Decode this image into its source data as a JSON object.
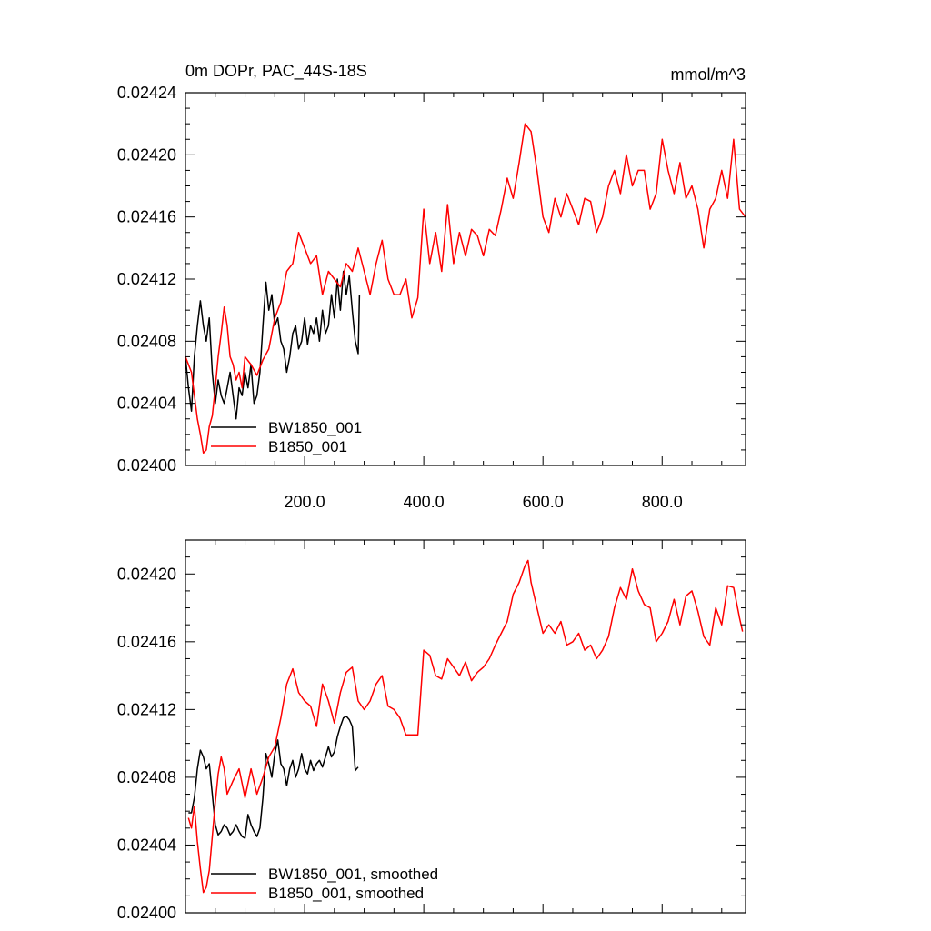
{
  "chart_data": [
    {
      "type": "line",
      "title": "0m DOPr, PAC_44S-18S",
      "units": "mmol/m^3",
      "xlabel": "",
      "ylabel": "",
      "xlim": [
        0,
        940
      ],
      "ylim": [
        0.024,
        0.02424
      ],
      "x_ticks": [
        200,
        400,
        600,
        800
      ],
      "x_tick_labels": [
        "200.0",
        "400.0",
        "600.0",
        "800.0"
      ],
      "y_ticks": [
        0.024,
        0.02404,
        0.02408,
        0.02412,
        0.02416,
        0.0242,
        0.02424
      ],
      "y_tick_labels": [
        "0.02400",
        "0.02404",
        "0.02408",
        "0.02412",
        "0.02416",
        "0.02420",
        "0.02424"
      ],
      "legend_position": "bottom-left",
      "series": [
        {
          "name": "BW1850_001",
          "color": "#000000",
          "x": [
            0,
            5,
            10,
            15,
            20,
            25,
            30,
            35,
            40,
            45,
            50,
            55,
            60,
            65,
            70,
            75,
            80,
            85,
            90,
            95,
            100,
            105,
            110,
            115,
            120,
            125,
            130,
            135,
            140,
            145,
            150,
            155,
            160,
            165,
            170,
            175,
            180,
            185,
            190,
            195,
            200,
            205,
            210,
            215,
            220,
            225,
            230,
            235,
            240,
            245,
            250,
            255,
            260,
            265,
            270,
            275,
            280,
            285,
            290,
            292
          ],
          "values": [
            0.02407,
            0.02405,
            0.024035,
            0.02407,
            0.02409,
            0.024106,
            0.02409,
            0.02408,
            0.024095,
            0.02406,
            0.02404,
            0.024055,
            0.024045,
            0.02404,
            0.02405,
            0.02406,
            0.024045,
            0.02403,
            0.02405,
            0.024045,
            0.02406,
            0.02405,
            0.024065,
            0.02404,
            0.024045,
            0.02406,
            0.02409,
            0.024118,
            0.0241,
            0.02411,
            0.02409,
            0.024095,
            0.02408,
            0.024075,
            0.02406,
            0.02407,
            0.024085,
            0.02409,
            0.024075,
            0.02408,
            0.024095,
            0.024078,
            0.02409,
            0.024085,
            0.024095,
            0.02408,
            0.0241,
            0.024085,
            0.02409,
            0.02411,
            0.024095,
            0.02412,
            0.0241,
            0.024125,
            0.02411,
            0.024122,
            0.0241,
            0.02408,
            0.024072,
            0.02411
          ]
        },
        {
          "name": "B1850_001",
          "color": "#ff0000",
          "x": [
            0,
            10,
            20,
            25,
            30,
            35,
            40,
            45,
            50,
            55,
            60,
            65,
            70,
            75,
            80,
            85,
            90,
            95,
            100,
            110,
            120,
            130,
            140,
            150,
            160,
            170,
            180,
            190,
            200,
            210,
            220,
            230,
            240,
            250,
            260,
            270,
            280,
            290,
            300,
            310,
            320,
            330,
            340,
            350,
            360,
            370,
            380,
            390,
            400,
            410,
            420,
            430,
            440,
            450,
            460,
            470,
            480,
            490,
            500,
            510,
            520,
            530,
            540,
            550,
            560,
            570,
            580,
            590,
            600,
            610,
            620,
            630,
            640,
            650,
            660,
            670,
            680,
            690,
            700,
            710,
            720,
            730,
            740,
            750,
            760,
            770,
            780,
            790,
            800,
            810,
            820,
            830,
            840,
            850,
            860,
            870,
            880,
            890,
            900,
            910,
            920,
            930,
            940
          ],
          "values": [
            0.02407,
            0.02406,
            0.02403,
            0.02402,
            0.024008,
            0.02401,
            0.024025,
            0.024032,
            0.02405,
            0.02407,
            0.024085,
            0.024102,
            0.02409,
            0.02407,
            0.024065,
            0.024055,
            0.02406,
            0.02405,
            0.02407,
            0.024065,
            0.024058,
            0.024068,
            0.024075,
            0.024095,
            0.024105,
            0.024125,
            0.02413,
            0.02415,
            0.02414,
            0.02413,
            0.024135,
            0.02411,
            0.024125,
            0.02412,
            0.024115,
            0.02413,
            0.024125,
            0.02414,
            0.024125,
            0.02411,
            0.02413,
            0.024145,
            0.02412,
            0.02411,
            0.02411,
            0.02412,
            0.024095,
            0.024108,
            0.024165,
            0.02413,
            0.02415,
            0.024125,
            0.024168,
            0.02413,
            0.02415,
            0.024135,
            0.024152,
            0.024148,
            0.024135,
            0.024152,
            0.024148,
            0.024165,
            0.024185,
            0.024172,
            0.024195,
            0.02422,
            0.024215,
            0.02419,
            0.02416,
            0.02415,
            0.024172,
            0.02416,
            0.024175,
            0.024165,
            0.024155,
            0.024172,
            0.02417,
            0.02415,
            0.02416,
            0.02418,
            0.02419,
            0.024175,
            0.0242,
            0.02418,
            0.02419,
            0.02419,
            0.024165,
            0.024175,
            0.02421,
            0.02419,
            0.024175,
            0.024195,
            0.024172,
            0.02418,
            0.024165,
            0.02414,
            0.024165,
            0.024172,
            0.02419,
            0.024172,
            0.02421,
            0.024165,
            0.02416
          ]
        }
      ]
    },
    {
      "type": "line",
      "title": "",
      "xlabel": "",
      "ylabel": "",
      "xlim": [
        0,
        940
      ],
      "ylim": [
        0.024,
        0.02422
      ],
      "x_ticks": [
        200,
        400,
        600,
        800
      ],
      "y_ticks": [
        0.024,
        0.02404,
        0.02408,
        0.02412,
        0.02416,
        0.0242
      ],
      "y_tick_labels": [
        "0.02400",
        "0.02404",
        "0.02408",
        "0.02412",
        "0.02416",
        "0.02420"
      ],
      "legend_position": "bottom-left",
      "series": [
        {
          "name": "BW1850_001, smoothed",
          "color": "#000000",
          "x": [
            5,
            10,
            15,
            20,
            25,
            30,
            35,
            40,
            45,
            50,
            55,
            60,
            65,
            70,
            75,
            80,
            85,
            90,
            95,
            100,
            105,
            110,
            115,
            120,
            125,
            130,
            135,
            140,
            145,
            150,
            155,
            160,
            165,
            170,
            175,
            180,
            185,
            190,
            195,
            200,
            205,
            210,
            215,
            220,
            225,
            230,
            235,
            240,
            245,
            250,
            255,
            260,
            265,
            270,
            275,
            280,
            285,
            290
          ],
          "values": [
            0.024059,
            0.024059,
            0.024068,
            0.024085,
            0.024096,
            0.024092,
            0.024085,
            0.024088,
            0.02407,
            0.024052,
            0.024046,
            0.024048,
            0.024052,
            0.02405,
            0.024046,
            0.024048,
            0.024052,
            0.024048,
            0.024045,
            0.024044,
            0.024058,
            0.024052,
            0.024048,
            0.024045,
            0.02405,
            0.024068,
            0.024094,
            0.024088,
            0.02408,
            0.024094,
            0.024102,
            0.024088,
            0.024085,
            0.024075,
            0.024085,
            0.02409,
            0.02408,
            0.024085,
            0.024094,
            0.024085,
            0.024082,
            0.02409,
            0.024084,
            0.024088,
            0.02409,
            0.024086,
            0.024092,
            0.024098,
            0.024092,
            0.024095,
            0.024104,
            0.02411,
            0.024115,
            0.024116,
            0.024114,
            0.02411,
            0.024084,
            0.024086
          ]
        },
        {
          "name": "B1850_001, smoothed",
          "color": "#ff0000",
          "x": [
            5,
            10,
            15,
            20,
            25,
            30,
            35,
            40,
            45,
            50,
            55,
            60,
            65,
            70,
            80,
            90,
            100,
            110,
            120,
            130,
            140,
            150,
            160,
            170,
            180,
            190,
            200,
            210,
            220,
            230,
            240,
            250,
            260,
            270,
            280,
            290,
            300,
            310,
            320,
            330,
            340,
            350,
            360,
            370,
            380,
            390,
            400,
            410,
            420,
            430,
            440,
            450,
            460,
            470,
            480,
            490,
            500,
            510,
            520,
            530,
            540,
            550,
            560,
            570,
            575,
            580,
            590,
            600,
            610,
            620,
            630,
            640,
            650,
            660,
            670,
            680,
            690,
            700,
            710,
            720,
            730,
            740,
            750,
            760,
            770,
            780,
            790,
            800,
            810,
            820,
            830,
            840,
            850,
            860,
            870,
            880,
            890,
            900,
            910,
            920,
            930,
            935
          ],
          "values": [
            0.024056,
            0.02405,
            0.024063,
            0.024042,
            0.024026,
            0.024012,
            0.024015,
            0.024025,
            0.024045,
            0.024065,
            0.024082,
            0.024092,
            0.024085,
            0.02407,
            0.024078,
            0.024085,
            0.024068,
            0.024085,
            0.02407,
            0.02408,
            0.024092,
            0.024098,
            0.024115,
            0.024135,
            0.024144,
            0.02413,
            0.024125,
            0.024122,
            0.02411,
            0.024135,
            0.024125,
            0.024112,
            0.02413,
            0.024142,
            0.024145,
            0.024125,
            0.02412,
            0.024125,
            0.024135,
            0.02414,
            0.024122,
            0.02412,
            0.024115,
            0.024105,
            0.024105,
            0.024105,
            0.024155,
            0.024152,
            0.02414,
            0.024138,
            0.02415,
            0.024145,
            0.02414,
            0.024148,
            0.024137,
            0.024142,
            0.024145,
            0.02415,
            0.024158,
            0.024165,
            0.024172,
            0.024188,
            0.024195,
            0.024205,
            0.024208,
            0.024195,
            0.02418,
            0.024165,
            0.02417,
            0.024165,
            0.024172,
            0.024158,
            0.02416,
            0.024165,
            0.024155,
            0.024158,
            0.02415,
            0.024155,
            0.024163,
            0.02418,
            0.024192,
            0.024185,
            0.024203,
            0.02419,
            0.024182,
            0.02418,
            0.02416,
            0.024165,
            0.024172,
            0.024185,
            0.02417,
            0.024187,
            0.02419,
            0.024178,
            0.024163,
            0.024158,
            0.02418,
            0.02417,
            0.024193,
            0.024192,
            0.024174,
            0.024166
          ]
        }
      ]
    }
  ]
}
